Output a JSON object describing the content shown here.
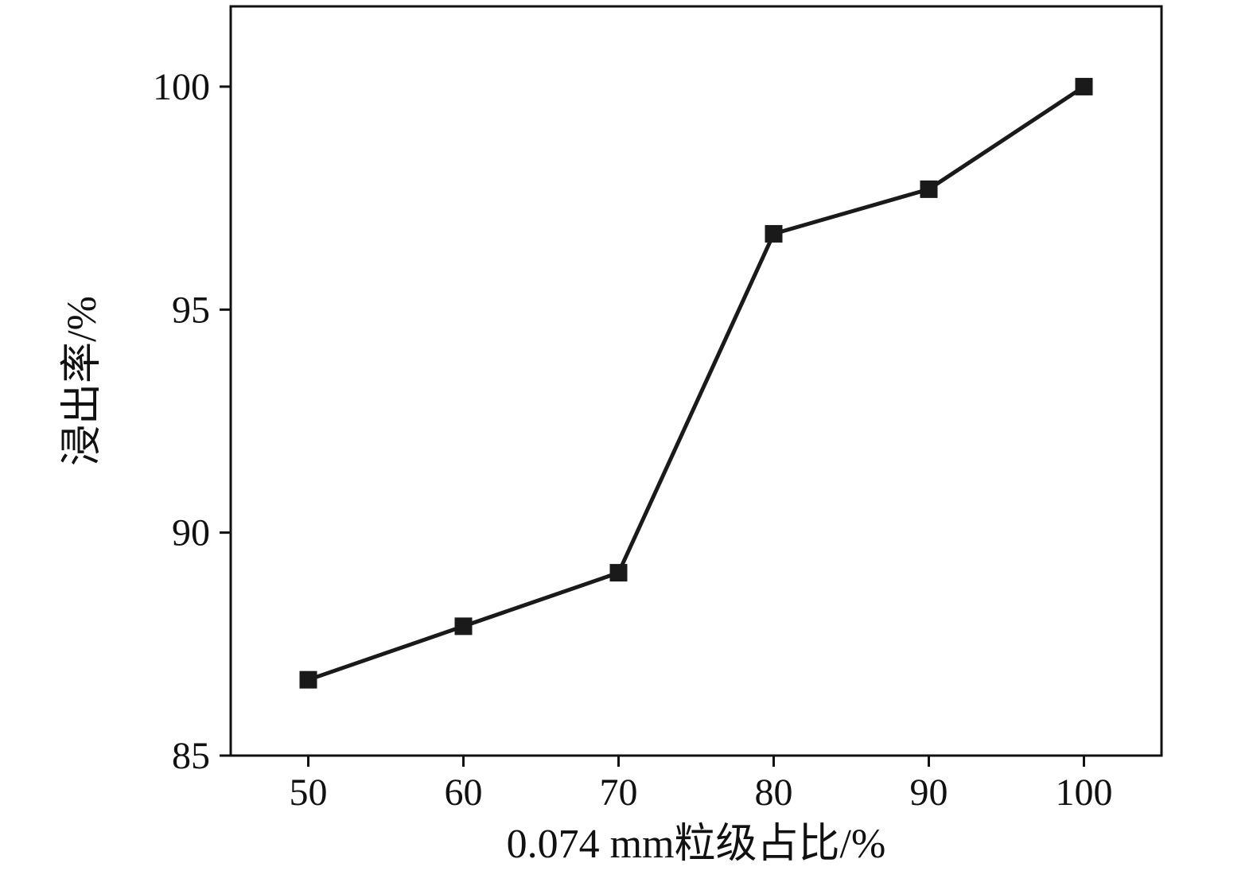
{
  "chart_data": {
    "type": "line",
    "title": "",
    "xlabel": "0.074 mm粒级占比/%",
    "ylabel": "浸出率/%",
    "x": [
      50,
      60,
      70,
      80,
      90,
      100
    ],
    "values": [
      86.7,
      87.9,
      89.1,
      96.7,
      97.7,
      100.0
    ],
    "series": [
      {
        "name": "浸出率",
        "values": [
          86.7,
          87.9,
          89.1,
          96.7,
          97.7,
          100.0
        ]
      }
    ],
    "xlim": [
      45,
      105
    ],
    "ylim": [
      85,
      101.8
    ],
    "xticks": [
      50,
      60,
      70,
      80,
      90,
      100
    ],
    "yticks": [
      85,
      90,
      95,
      100
    ],
    "grid": false,
    "legend": "none",
    "line_color": "#1a1a1a",
    "marker": "square",
    "marker_size": 22,
    "line_width": 5
  }
}
